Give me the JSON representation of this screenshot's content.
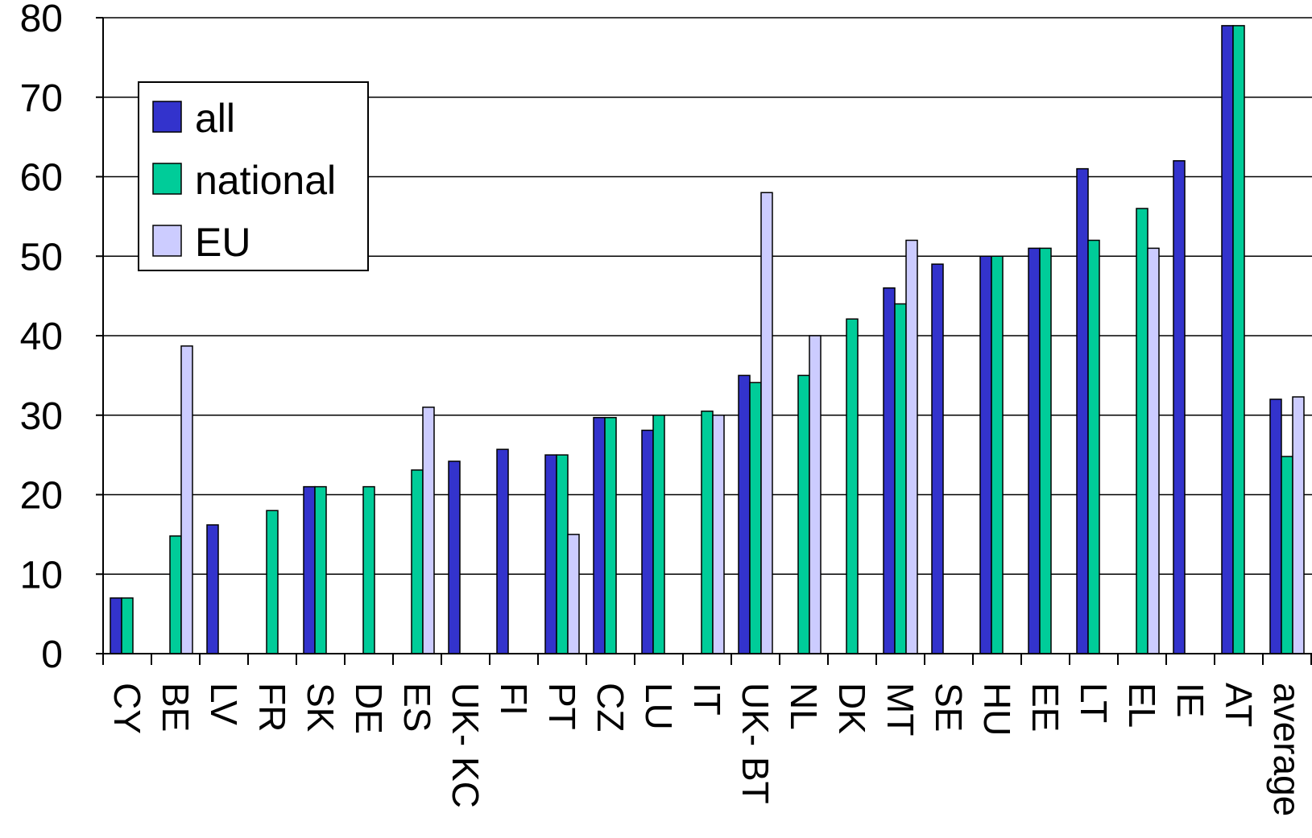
{
  "chart_data": {
    "type": "bar",
    "title": "",
    "xlabel": "",
    "ylabel": "",
    "ylim": [
      0,
      80
    ],
    "yticks": [
      0,
      10,
      20,
      30,
      40,
      50,
      60,
      70,
      80
    ],
    "grid": true,
    "legend_position": "top-left",
    "categories": [
      "CY",
      "BE",
      "LV",
      "FR",
      "SK",
      "DE",
      "ES",
      "UK- KC",
      "FI",
      "PT",
      "CZ",
      "LU",
      "IT",
      "UK- BT",
      "NL",
      "DK",
      "MT",
      "SE",
      "HU",
      "EE",
      "LT",
      "EL",
      "IE",
      "AT",
      "average"
    ],
    "series": [
      {
        "name": "all",
        "color": "#3333cc",
        "values": [
          7,
          null,
          16.2,
          null,
          21,
          null,
          null,
          24.2,
          25.7,
          25,
          29.7,
          28.1,
          null,
          35,
          null,
          null,
          46,
          49,
          50,
          51,
          61,
          null,
          62,
          79,
          32
        ]
      },
      {
        "name": "national",
        "color": "#00cc99",
        "values": [
          7,
          14.8,
          null,
          18,
          21,
          21,
          23.1,
          null,
          null,
          25,
          29.7,
          30,
          30.5,
          34.1,
          35,
          42.1,
          44,
          null,
          50,
          51,
          52,
          56,
          null,
          79,
          24.8
        ]
      },
      {
        "name": "EU",
        "color": "#ccccff",
        "values": [
          null,
          38.7,
          null,
          null,
          null,
          null,
          31,
          null,
          null,
          15,
          null,
          null,
          30,
          58,
          40,
          null,
          52,
          null,
          null,
          null,
          null,
          51,
          null,
          null,
          32.3
        ]
      }
    ]
  }
}
